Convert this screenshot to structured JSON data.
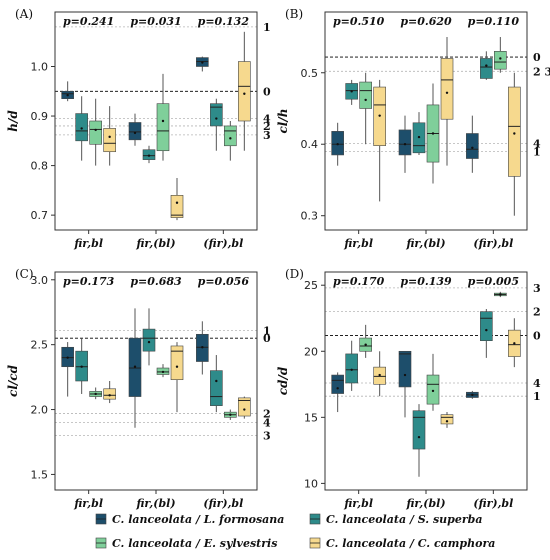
{
  "colors": {
    "L_formosana": "#1d4e6b",
    "S_superba": "#2e8b8a",
    "E_sylvestris": "#7fcf9a",
    "C_camphora": "#f6d98e",
    "zero_line": "#000000",
    "ref_line": "#b5b5b5"
  },
  "legend": {
    "items": [
      {
        "key": "L_formosana",
        "label": "C. lanceolata / L. formosana"
      },
      {
        "key": "S_superba",
        "label": "C. lanceolata / S. superba"
      },
      {
        "key": "E_sylvestris",
        "label": "C. lanceolata / E. sylvestris"
      },
      {
        "key": "C_camphora",
        "label": "C. lanceolata / C. camphora"
      }
    ]
  },
  "chart_data": [
    {
      "type": "box",
      "panel_label": "(A)",
      "ylabel": "h/d",
      "ylim": [
        0.67,
        1.11
      ],
      "yticks": [
        0.7,
        0.8,
        0.9,
        1.0
      ],
      "tick_labels": [
        "0.7",
        "0.8",
        "0.9",
        "1.0"
      ],
      "categories": [
        "fir,bl",
        "fir,(bl)",
        "(fir),bl"
      ],
      "p_values": [
        "p=0.241",
        "p=0.031",
        "p=0.132"
      ],
      "ref_lines": [
        {
          "label": "1",
          "value": 1.08,
          "style": "dotted"
        },
        {
          "label": "0",
          "value": 0.95,
          "style": "dashed"
        },
        {
          "label": "4",
          "value": 0.895,
          "style": "dotted"
        },
        {
          "label": "2",
          "value": 0.88,
          "style": "dotted"
        },
        {
          "label": "3",
          "value": 0.862,
          "style": "dotted"
        }
      ],
      "series_order": [
        "L_formosana",
        "S_superba",
        "E_sylvestris",
        "C_camphora"
      ],
      "boxes": [
        [
          {
            "min": 0.93,
            "q1": 0.935,
            "median": 0.945,
            "q3": 0.95,
            "max": 0.97,
            "mean": 0.942
          },
          {
            "min": 0.81,
            "q1": 0.85,
            "median": 0.87,
            "q3": 0.905,
            "max": 0.94,
            "mean": 0.875
          },
          {
            "min": 0.8,
            "q1": 0.843,
            "median": 0.873,
            "q3": 0.89,
            "max": 0.935,
            "mean": 0.872
          },
          {
            "min": 0.8,
            "q1": 0.828,
            "median": 0.845,
            "q3": 0.875,
            "max": 0.92,
            "mean": 0.858
          }
        ],
        [
          {
            "min": 0.84,
            "q1": 0.852,
            "median": 0.868,
            "q3": 0.887,
            "max": 0.905,
            "mean": 0.866
          },
          {
            "min": 0.805,
            "q1": 0.812,
            "median": 0.82,
            "q3": 0.832,
            "max": 0.84,
            "mean": 0.82
          },
          {
            "min": 0.81,
            "q1": 0.83,
            "median": 0.87,
            "q3": 0.925,
            "max": 0.985,
            "mean": 0.89
          },
          {
            "min": 0.69,
            "q1": 0.695,
            "median": 0.7,
            "q3": 0.74,
            "max": 0.775,
            "mean": 0.725
          }
        ],
        [
          {
            "min": 0.99,
            "q1": 1.0,
            "median": 1.01,
            "q3": 1.018,
            "max": 1.02,
            "mean": 1.008
          },
          {
            "min": 0.83,
            "q1": 0.88,
            "median": 0.918,
            "q3": 0.925,
            "max": 0.935,
            "mean": 0.895
          },
          {
            "min": 0.81,
            "q1": 0.84,
            "median": 0.87,
            "q3": 0.88,
            "max": 0.89,
            "mean": 0.855
          },
          {
            "min": 0.83,
            "q1": 0.89,
            "median": 0.96,
            "q3": 1.01,
            "max": 1.07,
            "mean": 0.945
          }
        ]
      ]
    },
    {
      "type": "box",
      "panel_label": "(B)",
      "ylabel": "cl/h",
      "ylim": [
        0.28,
        0.585
      ],
      "yticks": [
        0.3,
        0.4,
        0.5
      ],
      "tick_labels": [
        "0.3",
        "0.4",
        "0.5"
      ],
      "categories": [
        "fir,bl",
        "fir,(bl)",
        "(fir),bl"
      ],
      "p_values": [
        "p=0.510",
        "p=0.620",
        "p=0.110"
      ],
      "ref_lines": [
        {
          "label": "0",
          "value": 0.522,
          "style": "dashed"
        },
        {
          "label": "2 3",
          "value": 0.502,
          "style": "dotted"
        },
        {
          "label": "4",
          "value": 0.401,
          "style": "dotted"
        },
        {
          "label": "1",
          "value": 0.39,
          "style": "dotted"
        }
      ],
      "series_order": [
        "L_formosana",
        "S_superba",
        "E_sylvestris",
        "C_camphora"
      ],
      "boxes": [
        [
          {
            "min": 0.37,
            "q1": 0.385,
            "median": 0.4,
            "q3": 0.418,
            "max": 0.43,
            "mean": 0.4
          },
          {
            "min": 0.455,
            "q1": 0.463,
            "median": 0.475,
            "q3": 0.485,
            "max": 0.49,
            "mean": 0.474
          },
          {
            "min": 0.4,
            "q1": 0.45,
            "median": 0.475,
            "q3": 0.487,
            "max": 0.5,
            "mean": 0.462
          },
          {
            "min": 0.32,
            "q1": 0.398,
            "median": 0.455,
            "q3": 0.48,
            "max": 0.49,
            "mean": 0.44
          }
        ],
        [
          {
            "min": 0.36,
            "q1": 0.385,
            "median": 0.4,
            "q3": 0.42,
            "max": 0.44,
            "mean": 0.4
          },
          {
            "min": 0.385,
            "q1": 0.388,
            "median": 0.398,
            "q3": 0.43,
            "max": 0.445,
            "mean": 0.41
          },
          {
            "min": 0.345,
            "q1": 0.375,
            "median": 0.415,
            "q3": 0.455,
            "max": 0.485,
            "mean": 0.415
          },
          {
            "min": 0.37,
            "q1": 0.435,
            "median": 0.49,
            "q3": 0.52,
            "max": 0.55,
            "mean": 0.472
          }
        ],
        [
          {
            "min": 0.36,
            "q1": 0.38,
            "median": 0.393,
            "q3": 0.415,
            "max": 0.44,
            "mean": 0.395
          },
          {
            "min": 0.49,
            "q1": 0.492,
            "median": 0.508,
            "q3": 0.52,
            "max": 0.53,
            "mean": 0.51
          },
          {
            "min": 0.5,
            "q1": 0.505,
            "median": 0.515,
            "q3": 0.53,
            "max": 0.55,
            "mean": 0.52
          },
          {
            "min": 0.3,
            "q1": 0.355,
            "median": 0.425,
            "q3": 0.48,
            "max": 0.5,
            "mean": 0.415
          }
        ]
      ]
    },
    {
      "type": "box",
      "panel_label": "(C)",
      "ylabel": "cl/cd",
      "ylim": [
        1.38,
        3.06
      ],
      "yticks": [
        1.5,
        2.0,
        2.5,
        3.0
      ],
      "tick_labels": [
        "1.5",
        "2.0",
        "2.5",
        "3.0"
      ],
      "categories": [
        "fir,bl",
        "fir,(bl)",
        "(fir),bl"
      ],
      "p_values": [
        "p=0.173",
        "p=0.683",
        "p=0.056"
      ],
      "ref_lines": [
        {
          "label": "1",
          "value": 2.61,
          "style": "dotted"
        },
        {
          "label": "0",
          "value": 2.55,
          "style": "dashed"
        },
        {
          "label": "2",
          "value": 1.97,
          "style": "dotted"
        },
        {
          "label": "4",
          "value": 1.9,
          "style": "dotted"
        },
        {
          "label": "3",
          "value": 1.8,
          "style": "dotted"
        }
      ],
      "series_order": [
        "L_formosana",
        "S_superba",
        "E_sylvestris",
        "C_camphora"
      ],
      "boxes": [
        [
          {
            "min": 2.1,
            "q1": 2.33,
            "median": 2.4,
            "q3": 2.48,
            "max": 2.52,
            "mean": 2.4
          },
          {
            "min": 2.12,
            "q1": 2.22,
            "median": 2.33,
            "q3": 2.45,
            "max": 2.55,
            "mean": 2.33
          },
          {
            "min": 2.08,
            "q1": 2.1,
            "median": 2.12,
            "q3": 2.14,
            "max": 2.17,
            "mean": 2.12
          },
          {
            "min": 2.05,
            "q1": 2.08,
            "median": 2.11,
            "q3": 2.16,
            "max": 2.22,
            "mean": 2.11
          }
        ],
        [
          {
            "min": 1.86,
            "q1": 2.1,
            "median": 2.32,
            "q3": 2.55,
            "max": 2.78,
            "mean": 2.33
          },
          {
            "min": 2.34,
            "q1": 2.45,
            "median": 2.55,
            "q3": 2.62,
            "max": 2.78,
            "mean": 2.52
          },
          {
            "min": 2.25,
            "q1": 2.27,
            "median": 2.29,
            "q3": 2.32,
            "max": 2.35,
            "mean": 2.29
          },
          {
            "min": 1.98,
            "q1": 2.23,
            "median": 2.45,
            "q3": 2.49,
            "max": 2.52,
            "mean": 2.33
          }
        ],
        [
          {
            "min": 2.27,
            "q1": 2.37,
            "median": 2.48,
            "q3": 2.58,
            "max": 2.68,
            "mean": 2.48
          },
          {
            "min": 1.98,
            "q1": 2.03,
            "median": 2.1,
            "q3": 2.3,
            "max": 2.42,
            "mean": 2.22
          },
          {
            "min": 1.92,
            "q1": 1.94,
            "median": 1.96,
            "q3": 1.98,
            "max": 2.0,
            "mean": 1.96
          },
          {
            "min": 1.93,
            "q1": 1.95,
            "median": 2.07,
            "q3": 2.09,
            "max": 2.1,
            "mean": 2.0
          }
        ]
      ]
    },
    {
      "type": "box",
      "panel_label": "(D)",
      "ylabel": "cd/d",
      "ylim": [
        9.5,
        26
      ],
      "yticks": [
        10,
        15,
        20,
        25
      ],
      "tick_labels": [
        "10",
        "15",
        "20",
        "25"
      ],
      "categories": [
        "fir,bl",
        "fir,(bl)",
        "(fir),bl"
      ],
      "p_values": [
        "p=0.170",
        "p=0.139",
        "p=0.005"
      ],
      "ref_lines": [
        {
          "label": "3",
          "value": 24.8,
          "style": "dotted"
        },
        {
          "label": "2",
          "value": 23.0,
          "style": "dotted"
        },
        {
          "label": "0",
          "value": 21.2,
          "style": "dashed"
        },
        {
          "label": "4",
          "value": 17.6,
          "style": "dotted"
        },
        {
          "label": "1",
          "value": 16.6,
          "style": "dotted"
        }
      ],
      "series_order": [
        "L_formosana",
        "S_superba",
        "E_sylvestris",
        "C_camphora"
      ],
      "boxes": [
        [
          {
            "min": 15.4,
            "q1": 16.8,
            "median": 17.8,
            "q3": 18.2,
            "max": 18.4,
            "mean": 17.2
          },
          {
            "min": 17.0,
            "q1": 17.6,
            "median": 18.6,
            "q3": 19.8,
            "max": 20.8,
            "mean": 18.6
          },
          {
            "min": 19.5,
            "q1": 20.0,
            "median": 20.4,
            "q3": 21.0,
            "max": 22.0,
            "mean": 20.5
          },
          {
            "min": 16.6,
            "q1": 17.5,
            "median": 18.1,
            "q3": 18.8,
            "max": 20.0,
            "mean": 18.2
          }
        ],
        [
          {
            "min": 15.0,
            "q1": 17.3,
            "median": 19.8,
            "q3": 20.0,
            "max": 20.0,
            "mean": 18.2
          },
          {
            "min": 10.5,
            "q1": 12.6,
            "median": 15.0,
            "q3": 15.5,
            "max": 16.0,
            "mean": 13.5
          },
          {
            "min": 15.5,
            "q1": 16.0,
            "median": 17.5,
            "q3": 18.2,
            "max": 19.8,
            "mean": 17.0
          },
          {
            "min": 14.2,
            "q1": 14.5,
            "median": 15.0,
            "q3": 15.2,
            "max": 15.4,
            "mean": 14.7
          }
        ],
        [
          {
            "min": 16.4,
            "q1": 16.5,
            "median": 16.7,
            "q3": 16.9,
            "max": 17.0,
            "mean": 16.7
          },
          {
            "min": 19.5,
            "q1": 20.8,
            "median": 22.5,
            "q3": 23.0,
            "max": 23.2,
            "mean": 21.6
          },
          {
            "min": 24.1,
            "q1": 24.2,
            "median": 24.3,
            "q3": 24.4,
            "max": 24.5,
            "mean": 24.3
          },
          {
            "min": 18.8,
            "q1": 19.6,
            "median": 20.5,
            "q3": 21.6,
            "max": 22.5,
            "mean": 20.6
          }
        ]
      ]
    }
  ]
}
